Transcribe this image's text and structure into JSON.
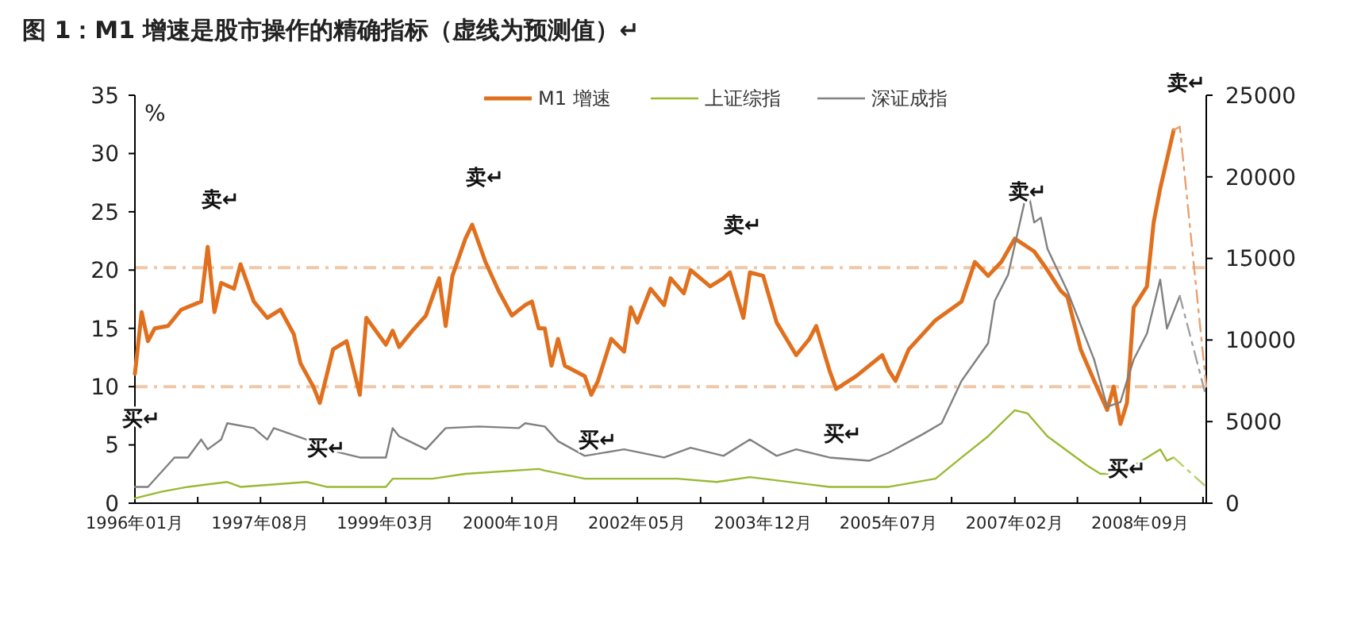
{
  "chart_data": {
    "type": "line",
    "title": "图 1：M1 增速是股市操作的精确指标（虚线为预测值）↵",
    "ylabel": "%",
    "xlim": [
      "1996-01",
      "2009-07"
    ],
    "xticks": [
      {
        "value": "1996-01",
        "label": "1996年01月"
      },
      {
        "value": "1996-10-16",
        "label": null
      },
      {
        "value": "1997-08",
        "label": "1997年08月"
      },
      {
        "value": "1998-05-16",
        "label": null
      },
      {
        "value": "1999-03",
        "label": "1999年03月"
      },
      {
        "value": "1999-12-16",
        "label": null
      },
      {
        "value": "2000-10",
        "label": "2000年10月"
      },
      {
        "value": "2001-07-16",
        "label": null
      },
      {
        "value": "2002-05",
        "label": "2002年05月"
      },
      {
        "value": "2003-02-16",
        "label": null
      },
      {
        "value": "2003-12",
        "label": "2003年12月"
      },
      {
        "value": "2004-09-16",
        "label": null
      },
      {
        "value": "2005-07",
        "label": "2005年07月"
      },
      {
        "value": "2006-04-16",
        "label": null
      },
      {
        "value": "2007-02",
        "label": "2007年02月"
      },
      {
        "value": "2007-11-16",
        "label": null
      },
      {
        "value": "2008-09",
        "label": "2008年09月"
      },
      {
        "value": "2009-06-16",
        "label": null
      }
    ],
    "ylim": [
      0,
      35
    ],
    "yticks": [
      0,
      5,
      10,
      15,
      20,
      25,
      30,
      35
    ],
    "y2lim": [
      0,
      25000
    ],
    "y2ticks": [
      0,
      5000,
      10000,
      15000,
      20000,
      25000
    ],
    "legend": "top",
    "grid": false,
    "ref_lines": [
      {
        "axis": "y",
        "value": 20.2,
        "color": "#f0c8a8",
        "line_style": "dashed"
      },
      {
        "axis": "y",
        "value": 10,
        "color": "#f0c8a8",
        "line_style": "dashed"
      }
    ],
    "series": [
      {
        "name": "M1 增速",
        "color": "#e0701e",
        "x": [
          "1996-01",
          "1996-02",
          "1996-03",
          "1996-04",
          "1996-06",
          "1996-08",
          "1996-11",
          "1996-12",
          "1997-01",
          "1997-02",
          "1997-04",
          "1997-05",
          "1997-07",
          "1997-09",
          "1997-11",
          "1998-01",
          "1998-02",
          "1998-04",
          "1998-05",
          "1998-07",
          "1998-09",
          "1998-11",
          "1998-12",
          "1999-03",
          "1999-04",
          "1999-05",
          "1999-07",
          "1999-09",
          "1999-11",
          "1999-12",
          "2000-01",
          "2000-03",
          "2000-04",
          "2000-06",
          "2000-08",
          "2000-10",
          "2000-12",
          "2001-01",
          "2001-02",
          "2001-03",
          "2001-04",
          "2001-05",
          "2001-06",
          "2001-09",
          "2001-10",
          "2001-11",
          "2002-01",
          "2002-03",
          "2002-04",
          "2002-05",
          "2002-07",
          "2002-09",
          "2002-10",
          "2002-12",
          "2003-01",
          "2003-04",
          "2003-06",
          "2003-07",
          "2003-09",
          "2003-10",
          "2003-12",
          "2004-02",
          "2004-05",
          "2004-07",
          "2004-08",
          "2004-10",
          "2004-11",
          "2005-02",
          "2005-06",
          "2005-07",
          "2005-08",
          "2005-10",
          "2006-02",
          "2006-06",
          "2006-08",
          "2006-10",
          "2006-12",
          "2007-02",
          "2007-05",
          "2007-07",
          "2007-09",
          "2007-10",
          "2007-12",
          "2008-02",
          "2008-04",
          "2008-05",
          "2008-06",
          "2008-07",
          "2008-08",
          "2008-10",
          "2008-11",
          "2008-12",
          "2009-02"
        ],
        "values": [
          11.1,
          16.4,
          13.9,
          15,
          15.2,
          16.6,
          17.3,
          22,
          16.4,
          18.9,
          18.4,
          20.5,
          17.3,
          15.9,
          16.6,
          14.5,
          12,
          10,
          8.6,
          13.2,
          13.9,
          9.3,
          15.9,
          13.6,
          14.8,
          13.4,
          14.8,
          16.1,
          19.3,
          15.2,
          19.5,
          22.7,
          23.9,
          20.7,
          18.2,
          16.1,
          17,
          17.3,
          15,
          15,
          11.8,
          14.1,
          11.8,
          10.9,
          9.3,
          10.5,
          14.1,
          13,
          16.8,
          15.5,
          18.4,
          17,
          19.3,
          18,
          20,
          18.6,
          19.3,
          19.8,
          15.9,
          19.8,
          19.5,
          15.5,
          12.7,
          14.1,
          15.2,
          11.4,
          9.8,
          10.9,
          12.7,
          11.4,
          10.5,
          13.2,
          15.7,
          17.3,
          20.7,
          19.5,
          20.7,
          22.7,
          21.6,
          20,
          18.2,
          17.7,
          13.2,
          10.5,
          8,
          10,
          6.8,
          8.6,
          16.8,
          18.6,
          24.1,
          27,
          32
        ]
      },
      {
        "name": "上证综指",
        "color": "#99b933",
        "axis": "y2",
        "x": [
          "1996-01",
          "1996-05",
          "1996-09",
          "1997-03",
          "1997-05",
          "1998-03",
          "1998-06",
          "1999-03",
          "1999-04",
          "1999-10",
          "2000-03",
          "2001-02",
          "2001-03",
          "2001-09",
          "2002-03",
          "2002-11",
          "2003-05",
          "2003-10",
          "2004-10",
          "2005-07",
          "2006-02",
          "2006-06",
          "2006-10",
          "2007-02",
          "2007-04",
          "2007-07",
          "2008-01",
          "2008-03",
          "2008-05",
          "2008-08",
          "2008-12",
          "2009-01",
          "2009-02"
        ],
        "values": [
          300,
          700,
          1000,
          1300,
          1000,
          1300,
          1000,
          1000,
          1500,
          1500,
          1800,
          2100,
          2000,
          1500,
          1500,
          1500,
          1300,
          1600,
          1000,
          1000,
          1500,
          2800,
          4100,
          5700,
          5500,
          4100,
          2300,
          1800,
          1800,
          2300,
          3300,
          2600,
          2800
        ]
      },
      {
        "name": "深证成指",
        "color": "#808080",
        "axis": "y2",
        "x": [
          "1996-01",
          "1996-03",
          "1996-07",
          "1996-09",
          "1996-11",
          "1996-12",
          "1997-02",
          "1997-03",
          "1997-07",
          "1997-09",
          "1997-10",
          "1998-03",
          "1998-06",
          "1998-11",
          "1999-03",
          "1999-04",
          "1999-05",
          "1999-09",
          "1999-12",
          "2000-05",
          "2000-11",
          "2000-12",
          "2001-03",
          "2001-05",
          "2001-09",
          "2002-03",
          "2002-09",
          "2003-01",
          "2003-06",
          "2003-10",
          "2004-02",
          "2004-05",
          "2004-10",
          "2005-04",
          "2005-07",
          "2005-12",
          "2006-03",
          "2006-06",
          "2006-10",
          "2006-11",
          "2007-01",
          "2007-04",
          "2007-05",
          "2007-06",
          "2007-07",
          "2007-10",
          "2008-02",
          "2008-04",
          "2008-06",
          "2008-07",
          "2008-08",
          "2008-10",
          "2008-12",
          "2009-01",
          "2009-03"
        ],
        "values": [
          1000,
          1000,
          2800,
          2800,
          3900,
          3300,
          3900,
          4900,
          4600,
          3900,
          4600,
          3900,
          3300,
          2800,
          2800,
          4600,
          4100,
          3300,
          4600,
          4700,
          4600,
          4900,
          4700,
          3800,
          2900,
          3300,
          2800,
          3400,
          2900,
          3900,
          2900,
          3300,
          2800,
          2600,
          3100,
          4200,
          4900,
          7500,
          9800,
          12400,
          14000,
          19300,
          17200,
          17500,
          15600,
          13000,
          8800,
          5900,
          6200,
          7500,
          8800,
          10400,
          13700,
          10700,
          12700
        ]
      },
      {
        "color": "#e8a070",
        "line_style": "dashed",
        "x": [
          "2009-02",
          "2009-03",
          "2009-07"
        ],
        "values": [
          32,
          32.3,
          10
        ]
      },
      {
        "color": "#b8d070",
        "line_style": "dashed",
        "axis": "y2",
        "x": [
          "2009-02",
          "2009-07"
        ],
        "values": [
          2800,
          1000
        ]
      },
      {
        "color": "#a0a0a0",
        "line_style": "dashed",
        "axis": "y2",
        "x": [
          "2009-03",
          "2009-07"
        ],
        "values": [
          12700,
          6500
        ]
      }
    ],
    "annotations": [
      {
        "text": "卖↵",
        "x": "1996-12",
        "y": 22
      },
      {
        "text": "卖↵",
        "x": "2000-04",
        "y": 23.9
      },
      {
        "text": "卖↵",
        "x": "2003-07",
        "y": 19.8
      },
      {
        "text": "卖↵",
        "x": "2007-02",
        "y": 22.7
      },
      {
        "text": "卖↵",
        "x": "2009-02",
        "y": 32
      },
      {
        "text": "买↵",
        "x": "1996-01",
        "y": 11.1
      },
      {
        "text": "买↵",
        "x": "1998-05",
        "y": 8.6
      },
      {
        "text": "买↵",
        "x": "2001-10",
        "y": 9.3
      },
      {
        "text": "买↵",
        "x": "2004-11",
        "y": 9.8
      },
      {
        "text": "买↵",
        "x": "2008-06",
        "y": 6.8
      }
    ]
  }
}
